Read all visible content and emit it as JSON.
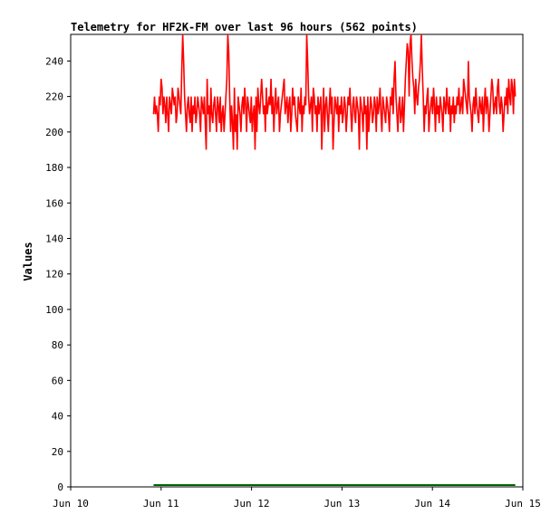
{
  "chart_data": {
    "type": "line",
    "title": "Telemetry for HF2K-FM over last 96 hours (562 points)",
    "xlabel": "",
    "ylabel": "Values",
    "xlim": [
      "Jun 10 00:00",
      "Jun 15 00:00"
    ],
    "ylim": [
      0,
      255
    ],
    "yticks": [
      0,
      20,
      40,
      60,
      80,
      100,
      120,
      140,
      160,
      180,
      200,
      220,
      240
    ],
    "xticks": [
      "Jun 10",
      "Jun 11",
      "Jun 12",
      "Jun 13",
      "Jun 14",
      "Jun 15"
    ],
    "grid": false,
    "series": [
      {
        "color": "#ff0000",
        "x_start": "Jun 10 22:00",
        "x_end": "Jun 14 22:00",
        "values": [
          210,
          220,
          210,
          215,
          210,
          200,
          220,
          215,
          230,
          225,
          210,
          220,
          215,
          205,
          220,
          210,
          200,
          220,
          215,
          210,
          225,
          220,
          215,
          220,
          205,
          210,
          225,
          220,
          215,
          210,
          235,
          255,
          240,
          220,
          210,
          200,
          215,
          220,
          210,
          205,
          220,
          200,
          215,
          210,
          220,
          205,
          210,
          220,
          215,
          210,
          200,
          220,
          215,
          210,
          220,
          205,
          190,
          230,
          210,
          215,
          200,
          225,
          210,
          205,
          215,
          220,
          210,
          200,
          220,
          215,
          205,
          220,
          200,
          210,
          215,
          200,
          210,
          220,
          230,
          255,
          245,
          220,
          200,
          215,
          205,
          190,
          225,
          200,
          210,
          190,
          220,
          215,
          210,
          200,
          215,
          220,
          210,
          225,
          215,
          200,
          220,
          215,
          210,
          205,
          220,
          200,
          210,
          215,
          190,
          220,
          200,
          225,
          215,
          210,
          220,
          230,
          220,
          210,
          215,
          200,
          225,
          210,
          215,
          220,
          215,
          230,
          210,
          220,
          200,
          215,
          225,
          210,
          215,
          220,
          200,
          210,
          215,
          220,
          225,
          230,
          210,
          215,
          220,
          205,
          215,
          220,
          200,
          210,
          225,
          215,
          220,
          210,
          205,
          200,
          220,
          215,
          210,
          225,
          200,
          215,
          210,
          220,
          215,
          260,
          240,
          220,
          210,
          215,
          220,
          200,
          225,
          220,
          210,
          215,
          200,
          220,
          210,
          215,
          220,
          190,
          210,
          225,
          200,
          215,
          220,
          210,
          200,
          215,
          225,
          210,
          220,
          190,
          205,
          220,
          215,
          210,
          220,
          200,
          215,
          210,
          220,
          205,
          210,
          220,
          215,
          200,
          210,
          220,
          215,
          225,
          210,
          200,
          215,
          220,
          210,
          205,
          220,
          215,
          210,
          190,
          220,
          215,
          210,
          200,
          220,
          210,
          215,
          190,
          220,
          200,
          210,
          220,
          215,
          205,
          210,
          220,
          215,
          200,
          220,
          210,
          215,
          225,
          210,
          200,
          220,
          215,
          210,
          205,
          220,
          215,
          210,
          200,
          220,
          215,
          225,
          210,
          230,
          240,
          220,
          210,
          200,
          215,
          220,
          205,
          210,
          220,
          200,
          215,
          230,
          240,
          250,
          245,
          220,
          250,
          265,
          240,
          230,
          225,
          210,
          230,
          220,
          215,
          225,
          230,
          240,
          260,
          235,
          220,
          200,
          215,
          210,
          220,
          225,
          200,
          210,
          215,
          220,
          210,
          225,
          215,
          200,
          220,
          210,
          215,
          205,
          220,
          215,
          210,
          200,
          220,
          215,
          210,
          225,
          215,
          210,
          220,
          200,
          215,
          210,
          220,
          205,
          215,
          210,
          220,
          215,
          225,
          210,
          215,
          220,
          210,
          230,
          225,
          220,
          215,
          210,
          240,
          220,
          215,
          210,
          200,
          215,
          220,
          210,
          225,
          215,
          210,
          205,
          220,
          215,
          210,
          220,
          200,
          215,
          225,
          210,
          220,
          215,
          200,
          210,
          220,
          230,
          225,
          210,
          215,
          220,
          210,
          225,
          230,
          215,
          210,
          220,
          215,
          200,
          210,
          220,
          215,
          225,
          210,
          230,
          220,
          215,
          230,
          225,
          210,
          230,
          220
        ]
      },
      {
        "color": "#006400",
        "x_start": "Jun 10 22:00",
        "x_end": "Jun 14 22:00",
        "values": [
          1,
          1
        ]
      }
    ]
  }
}
